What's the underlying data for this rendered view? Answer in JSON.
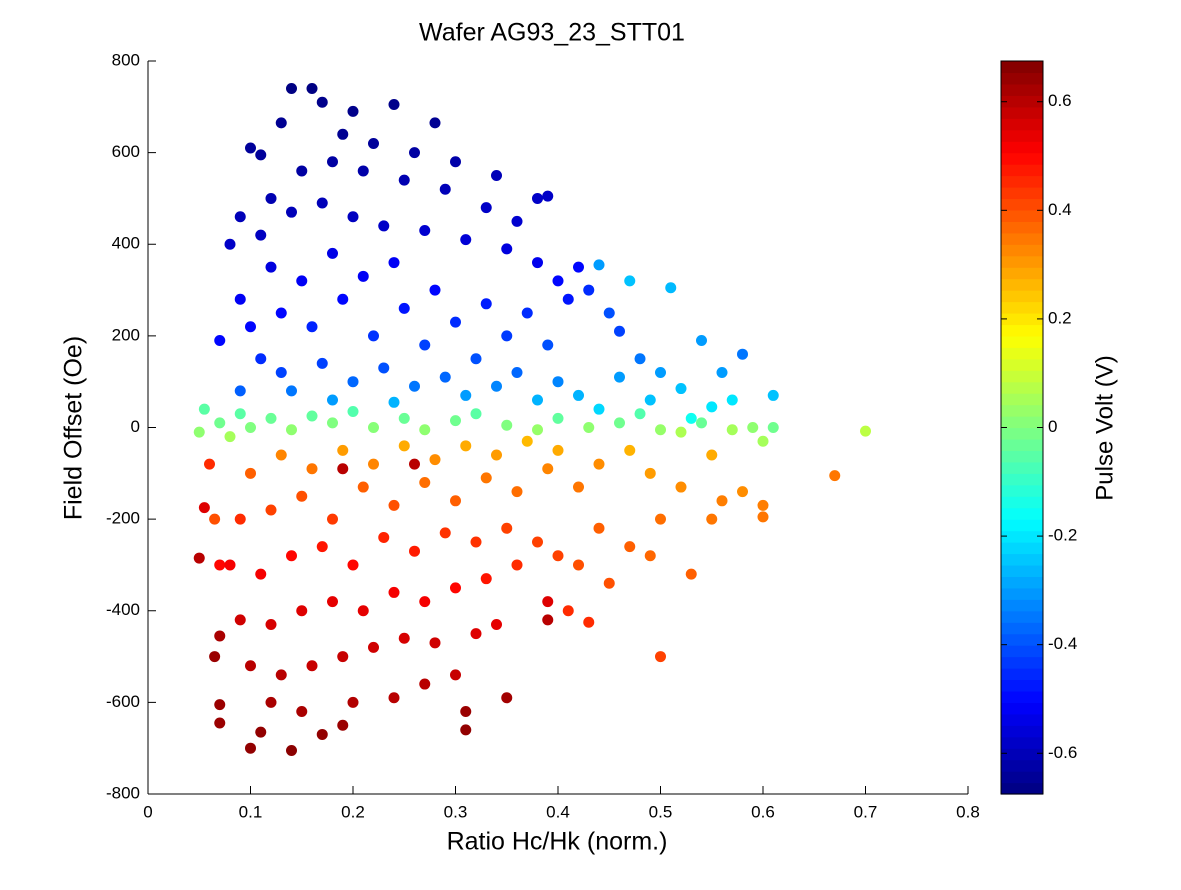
{
  "chart_data": {
    "type": "scatter",
    "title": "Wafer AG93_23_STT01",
    "x_label": "Ratio Hc/Hk (norm.)",
    "y_label": "Field Offset (Oe)",
    "colorbar_label": "Pulse Volt (V)",
    "colormap": "jet",
    "xlim": [
      0,
      0.8
    ],
    "xticks": [
      0,
      0.1,
      0.2,
      0.3,
      0.4,
      0.5,
      0.6,
      0.7,
      0.8
    ],
    "ylim": [
      -800,
      800
    ],
    "yticks": [
      -800,
      -600,
      -400,
      -200,
      0,
      200,
      400,
      600,
      800
    ],
    "clim": [
      -0.675,
      0.675
    ],
    "cticks": [
      -0.6,
      -0.4,
      -0.2,
      0,
      0.2,
      0.4,
      0.6
    ],
    "x": [
      0.1,
      0.11,
      0.14,
      0.16,
      0.17,
      0.24,
      0.28,
      0.13,
      0.2,
      0.19,
      0.22,
      0.26,
      0.3,
      0.34,
      0.38,
      0.39,
      0.15,
      0.18,
      0.21,
      0.25,
      0.29,
      0.33,
      0.36,
      0.12,
      0.09,
      0.08,
      0.11,
      0.14,
      0.17,
      0.2,
      0.23,
      0.27,
      0.31,
      0.35,
      0.38,
      0.4,
      0.42,
      0.44,
      0.47,
      0.51,
      0.54,
      0.57,
      0.61,
      0.43,
      0.41,
      0.45,
      0.46,
      0.48,
      0.5,
      0.52,
      0.55,
      0.53,
      0.49,
      0.09,
      0.1,
      0.07,
      0.12,
      0.13,
      0.15,
      0.16,
      0.18,
      0.19,
      0.21,
      0.22,
      0.24,
      0.25,
      0.27,
      0.28,
      0.3,
      0.32,
      0.33,
      0.35,
      0.36,
      0.37,
      0.39,
      0.4,
      0.11,
      0.13,
      0.14,
      0.17,
      0.2,
      0.23,
      0.26,
      0.29,
      0.31,
      0.34,
      0.38,
      0.42,
      0.44,
      0.09,
      0.18,
      0.24,
      0.46,
      0.58,
      0.56,
      0.05,
      0.055,
      0.07,
      0.09,
      0.1,
      0.12,
      0.14,
      0.16,
      0.18,
      0.2,
      0.22,
      0.25,
      0.27,
      0.3,
      0.32,
      0.35,
      0.38,
      0.4,
      0.43,
      0.46,
      0.5,
      0.54,
      0.57,
      0.59,
      0.6,
      0.61,
      0.7,
      0.48,
      0.52,
      0.08,
      0.065,
      0.06,
      0.055,
      0.05,
      0.07,
      0.07,
      0.065,
      0.07,
      0.07,
      0.1,
      0.11,
      0.14,
      0.17,
      0.19,
      0.31,
      0.31,
      0.35,
      0.12,
      0.15,
      0.2,
      0.24,
      0.27,
      0.3,
      0.1,
      0.13,
      0.16,
      0.19,
      0.22,
      0.25,
      0.28,
      0.32,
      0.34,
      0.09,
      0.12,
      0.15,
      0.18,
      0.21,
      0.24,
      0.27,
      0.3,
      0.33,
      0.36,
      0.39,
      0.39,
      0.43,
      0.41,
      0.5,
      0.08,
      0.11,
      0.14,
      0.17,
      0.2,
      0.23,
      0.26,
      0.29,
      0.32,
      0.35,
      0.38,
      0.4,
      0.42,
      0.45,
      0.47,
      0.49,
      0.44,
      0.5,
      0.53,
      0.55,
      0.56,
      0.58,
      0.6,
      0.6,
      0.67,
      0.52,
      0.49,
      0.55,
      0.47,
      0.09,
      0.12,
      0.15,
      0.18,
      0.21,
      0.24,
      0.27,
      0.3,
      0.33,
      0.36,
      0.39,
      0.42,
      0.44,
      0.1,
      0.13,
      0.16,
      0.19,
      0.22,
      0.25,
      0.28,
      0.31,
      0.34,
      0.37,
      0.4,
      0.26,
      0.19
    ],
    "values": [
      610,
      595,
      740,
      740,
      710,
      705,
      665,
      665,
      690,
      640,
      620,
      600,
      580,
      550,
      500,
      505,
      560,
      580,
      560,
      540,
      520,
      480,
      450,
      500,
      460,
      400,
      420,
      470,
      490,
      460,
      440,
      430,
      410,
      390,
      360,
      320,
      350,
      355,
      320,
      305,
      190,
      60,
      70,
      300,
      280,
      250,
      210,
      150,
      120,
      85,
      45,
      20,
      60,
      280,
      220,
      190,
      350,
      250,
      320,
      220,
      380,
      280,
      330,
      200,
      360,
      260,
      180,
      300,
      230,
      150,
      270,
      200,
      120,
      250,
      180,
      100,
      150,
      120,
      80,
      140,
      100,
      130,
      90,
      110,
      70,
      90,
      60,
      70,
      40,
      80,
      60,
      55,
      110,
      160,
      120,
      -10,
      40,
      10,
      30,
      0,
      20,
      -5,
      25,
      10,
      35,
      0,
      20,
      -5,
      15,
      30,
      5,
      -5,
      20,
      0,
      10,
      -5,
      10,
      -5,
      0,
      -30,
      0,
      -8,
      30,
      -10,
      -20,
      -200,
      -80,
      -175,
      -285,
      -300,
      -455,
      -500,
      -605,
      -645,
      -700,
      -665,
      -705,
      -670,
      -650,
      -620,
      -660,
      -590,
      -600,
      -620,
      -600,
      -590,
      -560,
      -540,
      -520,
      -540,
      -520,
      -500,
      -480,
      -460,
      -470,
      -450,
      -430,
      -420,
      -430,
      -400,
      -380,
      -400,
      -360,
      -380,
      -350,
      -330,
      -300,
      -380,
      -420,
      -425,
      -400,
      -500,
      -300,
      -320,
      -280,
      -260,
      -300,
      -240,
      -270,
      -230,
      -250,
      -220,
      -250,
      -280,
      -300,
      -340,
      -260,
      -280,
      -220,
      -200,
      -320,
      -200,
      -160,
      -140,
      -170,
      -195,
      -105,
      -130,
      -100,
      -60,
      -50,
      -200,
      -180,
      -150,
      -200,
      -130,
      -170,
      -120,
      -160,
      -110,
      -140,
      -90,
      -130,
      -80,
      -100,
      -60,
      -90,
      -50,
      -80,
      -40,
      -70,
      -40,
      -60,
      -30,
      -50,
      -80,
      -90
    ],
    "color_values": [
      -0.64,
      -0.64,
      -0.67,
      -0.67,
      -0.66,
      -0.66,
      -0.65,
      -0.65,
      -0.66,
      -0.65,
      -0.64,
      -0.63,
      -0.62,
      -0.6,
      -0.58,
      -0.58,
      -0.63,
      -0.63,
      -0.62,
      -0.61,
      -0.6,
      -0.58,
      -0.57,
      -0.61,
      -0.6,
      -0.58,
      -0.59,
      -0.6,
      -0.6,
      -0.59,
      -0.58,
      -0.57,
      -0.56,
      -0.55,
      -0.53,
      -0.5,
      -0.5,
      -0.3,
      -0.25,
      -0.26,
      -0.3,
      -0.2,
      -0.25,
      -0.45,
      -0.48,
      -0.4,
      -0.42,
      -0.35,
      -0.3,
      -0.25,
      -0.2,
      -0.15,
      -0.25,
      -0.52,
      -0.5,
      -0.5,
      -0.55,
      -0.5,
      -0.52,
      -0.46,
      -0.54,
      -0.5,
      -0.52,
      -0.44,
      -0.52,
      -0.48,
      -0.42,
      -0.5,
      -0.45,
      -0.4,
      -0.47,
      -0.43,
      -0.37,
      -0.45,
      -0.4,
      -0.33,
      -0.45,
      -0.42,
      -0.35,
      -0.42,
      -0.37,
      -0.4,
      -0.35,
      -0.37,
      -0.3,
      -0.33,
      -0.27,
      -0.27,
      -0.22,
      -0.38,
      -0.3,
      -0.27,
      -0.3,
      -0.35,
      -0.3,
      0.02,
      -0.05,
      -0.02,
      -0.05,
      0,
      -0.03,
      0.02,
      -0.04,
      0,
      -0.06,
      0.01,
      -0.03,
      0.02,
      -0.02,
      -0.05,
      0,
      0.03,
      -0.04,
      0.02,
      -0.02,
      0.03,
      -0.03,
      0.05,
      0.02,
      0.05,
      -0.02,
      0.08,
      -0.06,
      0.06,
      0.05,
      0.4,
      0.45,
      0.55,
      0.6,
      0.5,
      0.62,
      0.64,
      0.64,
      0.64,
      0.65,
      0.65,
      0.66,
      0.65,
      0.64,
      0.64,
      0.65,
      0.63,
      0.62,
      0.62,
      0.61,
      0.6,
      0.6,
      0.58,
      0.6,
      0.6,
      0.58,
      0.58,
      0.57,
      0.56,
      0.57,
      0.55,
      0.54,
      0.57,
      0.56,
      0.55,
      0.54,
      0.54,
      0.52,
      0.52,
      0.5,
      0.48,
      0.45,
      0.55,
      0.6,
      0.45,
      0.45,
      0.42,
      0.52,
      0.52,
      0.5,
      0.48,
      0.5,
      0.46,
      0.47,
      0.44,
      0.44,
      0.42,
      0.42,
      0.42,
      0.4,
      0.4,
      0.38,
      0.37,
      0.38,
      0.36,
      0.38,
      0.35,
      0.34,
      0.32,
      0.34,
      0.35,
      0.35,
      0.32,
      0.3,
      0.28,
      0.27,
      0.45,
      0.42,
      0.4,
      0.43,
      0.38,
      0.4,
      0.36,
      0.38,
      0.35,
      0.36,
      0.33,
      0.35,
      0.32,
      0.38,
      0.33,
      0.35,
      0.3,
      0.33,
      0.28,
      0.32,
      0.28,
      0.3,
      0.26,
      0.28,
      0.6,
      0.6
    ]
  }
}
